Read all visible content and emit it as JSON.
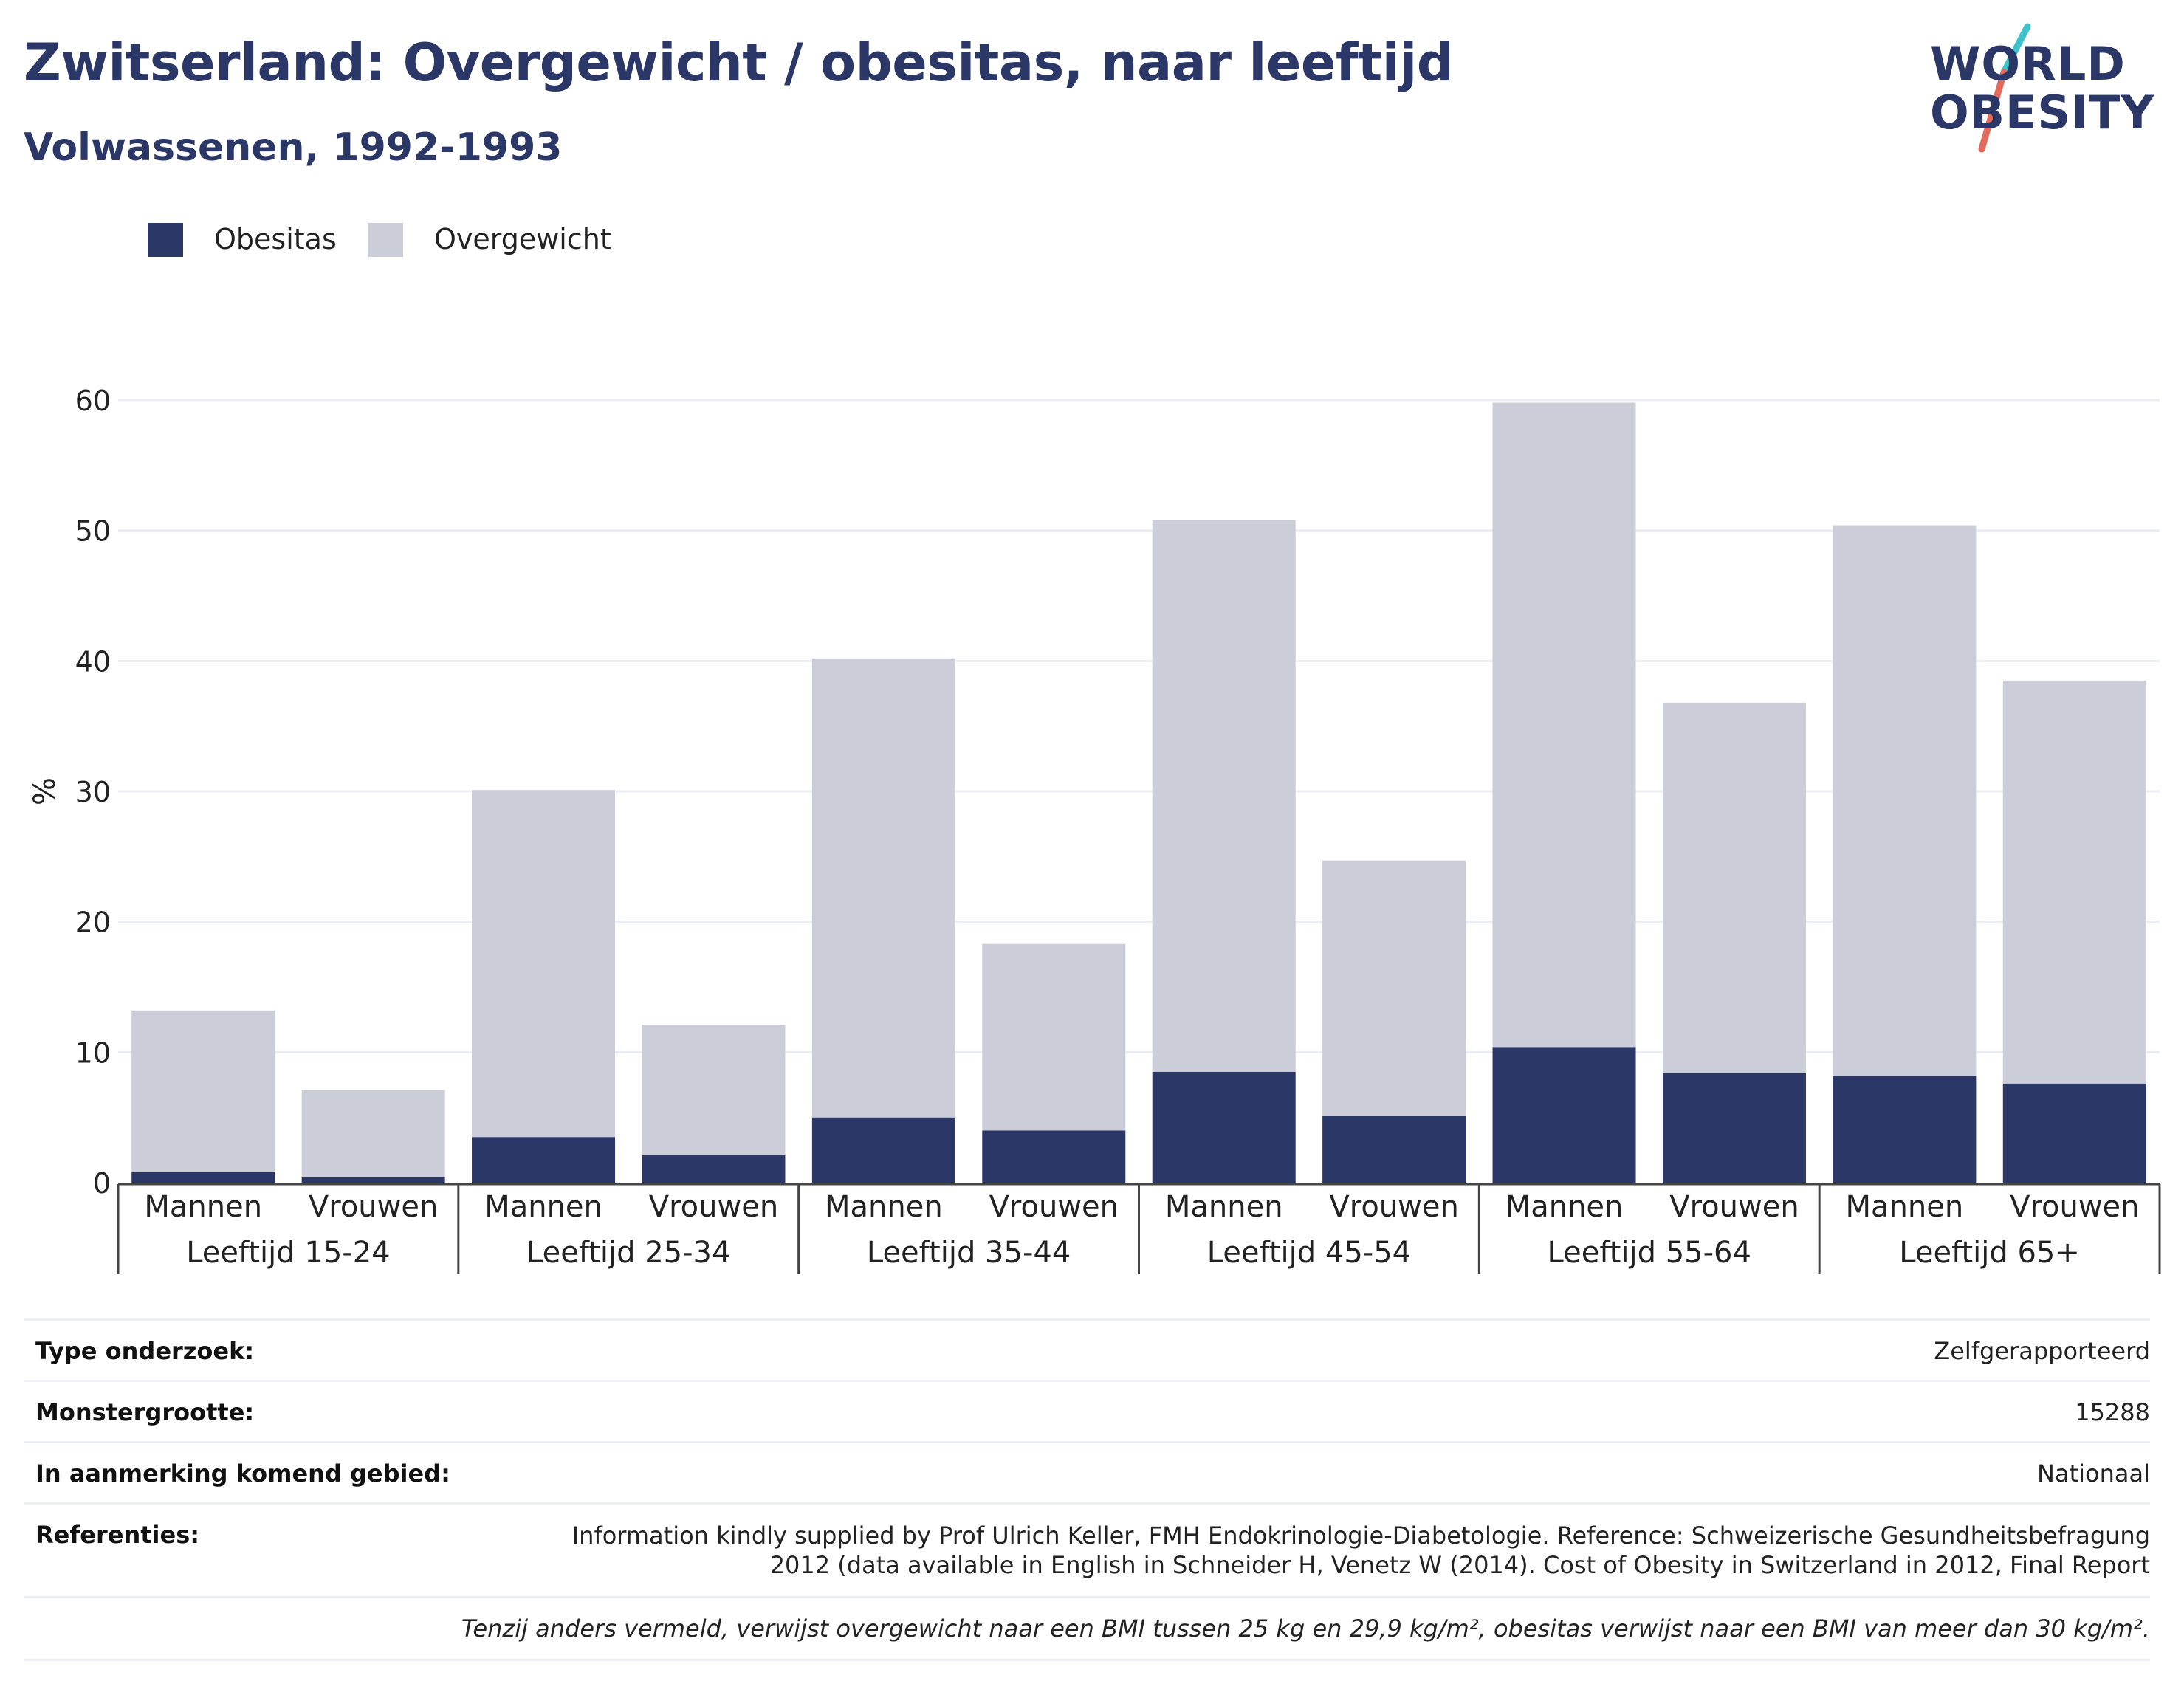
{
  "header": {
    "title": "Zwitserland: Overgewicht / obesitas, naar leeftijd",
    "subtitle": "Volwassenen, 1992-1993"
  },
  "logo": {
    "line1": "WORLD",
    "line2": "OBESITY"
  },
  "colors": {
    "obesitas": "#2b3766",
    "overgewicht": "#cbcdd9",
    "grid": "#eceef4",
    "axis": "#444444",
    "logo_slash_top": "#3ec1c9",
    "logo_slash_bottom": "#e46a5b"
  },
  "legend": [
    {
      "label": "Obesitas",
      "color": "#2b3766"
    },
    {
      "label": "Overgewicht",
      "color": "#cbcdd9"
    }
  ],
  "chart_data": {
    "type": "bar",
    "stacked": true,
    "ylabel": "%",
    "ylim": [
      0,
      60
    ],
    "yticks": [
      0,
      10,
      20,
      30,
      40,
      50,
      60
    ],
    "grid": true,
    "legend_position": "top-left",
    "groups": [
      "Leeftijd 15-24",
      "Leeftijd 25-34",
      "Leeftijd 35-44",
      "Leeftijd 45-54",
      "Leeftijd 55-64",
      "Leeftijd 65+"
    ],
    "categories": [
      "Mannen",
      "Vrouwen",
      "Mannen",
      "Vrouwen",
      "Mannen",
      "Vrouwen",
      "Mannen",
      "Vrouwen",
      "Mannen",
      "Vrouwen",
      "Mannen",
      "Vrouwen"
    ],
    "series": [
      {
        "name": "Obesitas",
        "values": [
          0.8,
          0.4,
          3.5,
          2.1,
          5.0,
          4.0,
          8.5,
          5.1,
          10.4,
          8.4,
          8.2,
          7.6
        ]
      },
      {
        "name": "Overgewicht",
        "values": [
          12.4,
          6.7,
          26.6,
          10.0,
          35.2,
          14.3,
          42.3,
          19.6,
          49.4,
          28.4,
          42.2,
          30.9
        ]
      }
    ]
  },
  "info": {
    "survey_type_label": "Type onderzoek:",
    "survey_type_value": "Zelfgerapporteerd",
    "sample_size_label": "Monstergrootte:",
    "sample_size_value": "15288",
    "area_label": "In aanmerking komend gebied:",
    "area_value": "Nationaal",
    "references_label": "Referenties:",
    "references_value": "Information kindly supplied by Prof Ulrich Keller, FMH Endokrinologie-Diabetologie. Reference: Schweizerische Gesundheitsbefragung 2012 (data available in English in Schneider H, Venetz W (2014). Cost of Obesity in Switzerland in 2012, Final Report",
    "footnote": "Tenzij anders vermeld, verwijst overgewicht naar een BMI tussen 25 kg en 29,9 kg/m², obesitas verwijst naar een BMI van meer dan 30 kg/m²."
  }
}
